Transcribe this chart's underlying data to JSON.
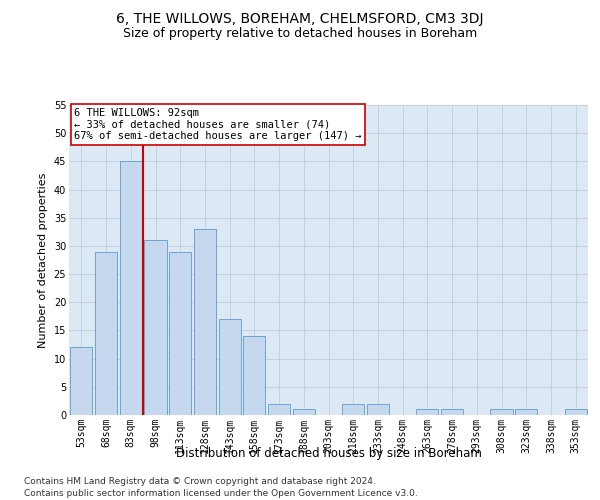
{
  "title": "6, THE WILLOWS, BOREHAM, CHELMSFORD, CM3 3DJ",
  "subtitle": "Size of property relative to detached houses in Boreham",
  "xlabel": "Distribution of detached houses by size in Boreham",
  "ylabel": "Number of detached properties",
  "categories": [
    "53sqm",
    "68sqm",
    "83sqm",
    "98sqm",
    "113sqm",
    "128sqm",
    "143sqm",
    "158sqm",
    "173sqm",
    "188sqm",
    "203sqm",
    "218sqm",
    "233sqm",
    "248sqm",
    "263sqm",
    "278sqm",
    "293sqm",
    "308sqm",
    "323sqm",
    "338sqm",
    "353sqm"
  ],
  "values": [
    12,
    29,
    45,
    31,
    29,
    33,
    17,
    14,
    2,
    1,
    0,
    2,
    2,
    0,
    1,
    1,
    0,
    1,
    1,
    0,
    1
  ],
  "bar_color": "#c5d8ed",
  "bar_edge_color": "#5b9bd5",
  "vline_x_index": 2,
  "vline_color": "#cc0000",
  "annotation_text": "6 THE WILLOWS: 92sqm\n← 33% of detached houses are smaller (74)\n67% of semi-detached houses are larger (147) →",
  "annotation_box_color": "#ffffff",
  "annotation_box_edge": "#cc0000",
  "ylim": [
    0,
    55
  ],
  "yticks": [
    0,
    5,
    10,
    15,
    20,
    25,
    30,
    35,
    40,
    45,
    50,
    55
  ],
  "footer_line1": "Contains HM Land Registry data © Crown copyright and database right 2024.",
  "footer_line2": "Contains public sector information licensed under the Open Government Licence v3.0.",
  "bg_color": "#ffffff",
  "plot_bg_color": "#dce9f5",
  "grid_color": "#b8c8d8",
  "title_fontsize": 10,
  "subtitle_fontsize": 9,
  "xlabel_fontsize": 8.5,
  "ylabel_fontsize": 8,
  "tick_fontsize": 7,
  "annotation_fontsize": 7.5,
  "footer_fontsize": 6.5
}
